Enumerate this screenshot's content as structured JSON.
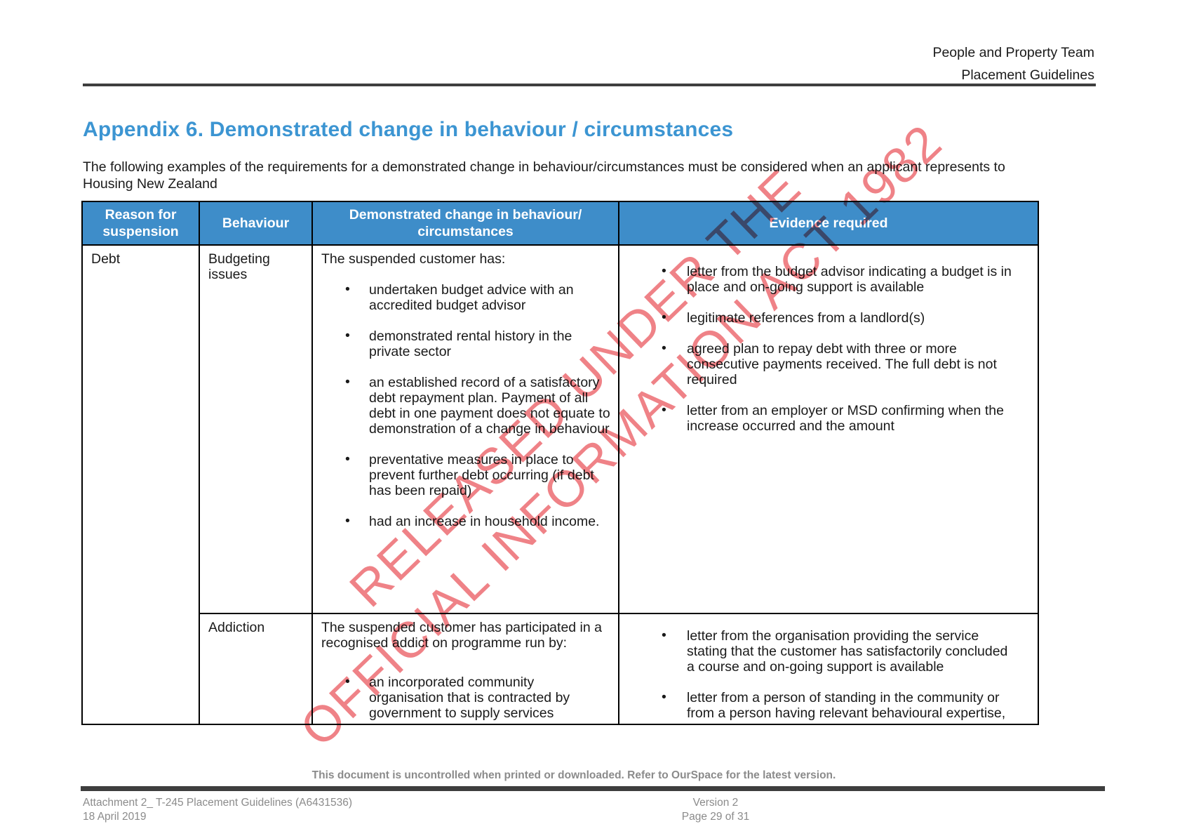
{
  "header": {
    "org": "People and Property Team",
    "doc": "Placement Guidelines"
  },
  "title": "Appendix 6. Demonstrated change in behaviour / circumstances",
  "intro": "The following examples of the requirements for a demonstrated change in behaviour/circumstances must be considered when an applicant represents to Housing New Zealand",
  "watermark": {
    "line1": "RELEASED UNDER THE",
    "line2": "OFFICIAL INFORMATION ACT 1982"
  },
  "table": {
    "headers": [
      "Reason for suspension",
      "Behaviour",
      "Demonstrated change in behaviour/ circumstances",
      "Evidence required"
    ],
    "rows": [
      {
        "reason": "Debt",
        "behaviour": "Budgeting issues",
        "change_intro": "The suspended customer has:",
        "change_bullets": [
          "undertaken budget advice with an accredited budget advisor",
          "demonstrated rental history in the private sector",
          "an established record of a satisfactory debt repayment plan. Payment of all debt in one payment does not equate to demonstration of a change in behaviour",
          "preventative measures in place to prevent further debt occurring (if debt has been repaid)",
          "had an increase in household income."
        ],
        "evidence_bullets": [
          "letter from the budget advisor indicating a budget is in place and on-going support is available",
          "legitimate references from a landlord(s)",
          "agreed plan to repay debt with three or more consecutive payments received. The full debt is not required",
          "letter from an employer or MSD confirming when the increase occurred and the amount"
        ]
      },
      {
        "behaviour": "Addiction",
        "change_intro": "The suspended customer has participated in a recognised addict on programme run by:",
        "change_bullets": [
          "an incorporated community organisation that is contracted by government to supply services"
        ],
        "evidence_bullets": [
          "letter from the organisation providing the service stating that the customer has satisfactorily concluded a course and on-going support is available",
          "letter from a person of standing in the community or from a person having relevant behavioural expertise,"
        ]
      }
    ]
  },
  "footer": {
    "notice": "This document is uncontrolled when printed or downloaded. Refer to OurSpace for the latest version.",
    "doc_ref": "Attachment 2_ T-245 Placement Guidelines (A6431536)",
    "date": "18 April 2019",
    "version": "Version 2",
    "page": "Page 29 of 31"
  },
  "colors": {
    "table_header_bg": "#3e8dc9",
    "title_blue": "#3c95d2",
    "watermark_red": "#ec676c",
    "footer_gray": "#8b8b8b",
    "rule_gray": "#3e3e3e"
  }
}
